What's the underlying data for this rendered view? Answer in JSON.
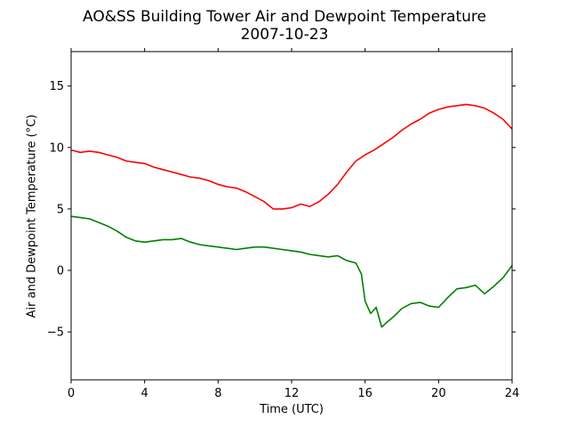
{
  "chart_data": {
    "type": "line",
    "title": "AO&SS Building Tower Air and Dewpoint Temperature",
    "subtitle": "2007-10-23",
    "xlabel": "Time (UTC)",
    "ylabel": "Air and Dewpoint Temperature (°C)",
    "xlim": [
      0,
      24
    ],
    "ylim": [
      -8.9,
      17.8
    ],
    "xticks": [
      0,
      4,
      8,
      12,
      16,
      20,
      24
    ],
    "yticks": [
      -5,
      0,
      5,
      10,
      15
    ],
    "grid": false,
    "series": [
      {
        "color": "#ff0000",
        "x": [
          0,
          0.5,
          1,
          1.5,
          2,
          2.5,
          3,
          3.5,
          4,
          4.5,
          5,
          5.5,
          6,
          6.5,
          7,
          7.5,
          8,
          8.5,
          9,
          9.5,
          10,
          10.5,
          11,
          11.5,
          12,
          12.5,
          13,
          13.5,
          14,
          14.5,
          15,
          15.5,
          16,
          16.5,
          17,
          17.5,
          18,
          18.5,
          19,
          19.5,
          20,
          20.5,
          21,
          21.5,
          22,
          22.5,
          23,
          23.5,
          24
        ],
        "y": [
          9.8,
          9.6,
          9.7,
          9.6,
          9.4,
          9.2,
          8.9,
          8.8,
          8.7,
          8.4,
          8.2,
          8.0,
          7.8,
          7.6,
          7.5,
          7.3,
          7.0,
          6.8,
          6.7,
          6.4,
          6.0,
          5.6,
          5.0,
          5.0,
          5.1,
          5.4,
          5.2,
          5.6,
          6.2,
          7.0,
          8.0,
          8.9,
          9.4,
          9.8,
          10.3,
          10.8,
          11.4,
          11.9,
          12.3,
          12.8,
          13.1,
          13.3,
          13.4,
          13.5,
          13.4,
          13.2,
          12.8,
          12.3,
          11.5
        ]
      },
      {
        "color": "#008000",
        "x": [
          0,
          0.5,
          1,
          1.5,
          2,
          2.5,
          3,
          3.5,
          4,
          4.5,
          5,
          5.5,
          6,
          6.5,
          7,
          7.5,
          8,
          8.5,
          9,
          9.5,
          10,
          10.5,
          11,
          11.5,
          12,
          12.5,
          13,
          13.5,
          14,
          14.5,
          15,
          15.5,
          15.8,
          16,
          16.3,
          16.6,
          16.9,
          17.2,
          17.6,
          18,
          18.5,
          19,
          19.5,
          20,
          20.5,
          21,
          21.5,
          22,
          22.5,
          23,
          23.5,
          24
        ],
        "y": [
          4.4,
          4.3,
          4.2,
          3.9,
          3.6,
          3.2,
          2.7,
          2.4,
          2.3,
          2.4,
          2.5,
          2.5,
          2.6,
          2.3,
          2.1,
          2.0,
          1.9,
          1.8,
          1.7,
          1.8,
          1.9,
          1.9,
          1.8,
          1.7,
          1.6,
          1.5,
          1.3,
          1.2,
          1.1,
          1.2,
          0.8,
          0.6,
          -0.3,
          -2.5,
          -3.5,
          -3.0,
          -4.6,
          -4.2,
          -3.7,
          -3.1,
          -2.7,
          -2.6,
          -2.9,
          -3.0,
          -2.2,
          -1.5,
          -1.4,
          -1.2,
          -1.9,
          -1.3,
          -0.6,
          0.4
        ]
      }
    ]
  }
}
